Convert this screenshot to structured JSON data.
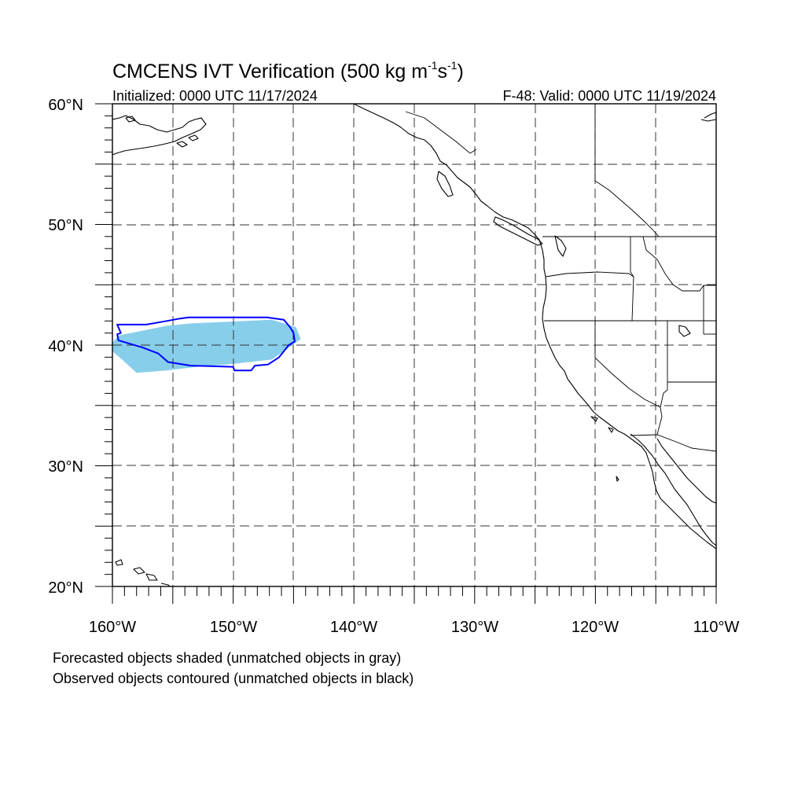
{
  "title": {
    "text": "CMCENS IVT Verification (500 kg m",
    "sup1": "-1",
    "mid": "s",
    "sup2": "-1",
    "end": ")"
  },
  "subtitle_left": "Initialized: 0000 UTC 11/17/2024",
  "subtitle_right": "F-48: Valid: 0000 UTC 11/19/2024",
  "lat_labels": [
    "60°N",
    "50°N",
    "40°N",
    "30°N",
    "20°N"
  ],
  "lon_labels": [
    "160°W",
    "150°W",
    "140°W",
    "130°W",
    "120°W",
    "110°W"
  ],
  "footnotes": [
    "Forecasted objects shaded (unmatched objects in gray)",
    "Observed objects contoured (unmatched objects in black)"
  ],
  "colors": {
    "forecast_fill": "#87ceeb",
    "observed_contour": "#0000ff",
    "coastline": "#000000",
    "grid": "#333333"
  },
  "map_extent": {
    "lon_min": -160,
    "lon_max": -110,
    "lat_min": 20,
    "lat_max": 60
  },
  "forecast_object": [
    [
      -159.5,
      40.8
    ],
    [
      -157.5,
      41.2
    ],
    [
      -155.5,
      41.6
    ],
    [
      -153.5,
      41.8
    ],
    [
      -149,
      42
    ],
    [
      -146.8,
      42.1
    ],
    [
      -144.8,
      41.5
    ],
    [
      -144.4,
      40.5
    ],
    [
      -145.4,
      39.8
    ],
    [
      -146.8,
      38.8
    ],
    [
      -150.5,
      38.4
    ],
    [
      -153,
      38.2
    ],
    [
      -155.5,
      37.9
    ],
    [
      -158,
      37.7
    ],
    [
      -159.2,
      38.8
    ],
    [
      -160,
      39.5
    ],
    [
      -160,
      40.2
    ]
  ],
  "observed_object": [
    [
      -159.6,
      41.7
    ],
    [
      -157.2,
      41.7
    ],
    [
      -155.5,
      42.0
    ],
    [
      -154.4,
      42.2
    ],
    [
      -153.7,
      42.3
    ],
    [
      -147.2,
      42.3
    ],
    [
      -145.8,
      42.1
    ],
    [
      -145.3,
      41.5
    ],
    [
      -145.0,
      41.0
    ],
    [
      -144.9,
      40.3
    ],
    [
      -145.4,
      40.0
    ],
    [
      -146.2,
      39.0
    ],
    [
      -147.1,
      38.4
    ],
    [
      -148.2,
      38.3
    ],
    [
      -148.5,
      37.9
    ],
    [
      -149.9,
      37.9
    ],
    [
      -150.0,
      38.2
    ],
    [
      -153.5,
      38.3
    ],
    [
      -155.4,
      38.6
    ],
    [
      -156.2,
      39.3
    ],
    [
      -157.5,
      39.8
    ],
    [
      -159.5,
      40.4
    ],
    [
      -159.6,
      40.9
    ],
    [
      -159.3,
      41.0
    ]
  ]
}
